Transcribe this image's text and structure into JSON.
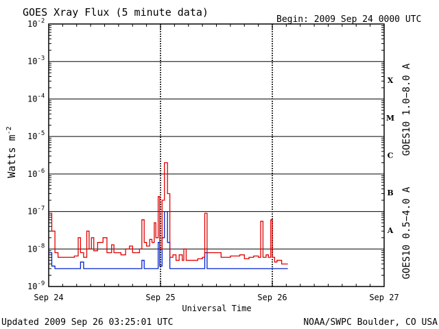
{
  "header": {
    "title": "GOES Xray Flux (5 minute data)",
    "begin": "Begin:  2009 Sep 24 0000 UTC"
  },
  "footer": {
    "updated": "Updated 2009 Sep 26 03:25:01 UTC",
    "source": "NOAA/SWPC Boulder, CO USA"
  },
  "colors": {
    "long": "#e00000",
    "short": "#0020d0",
    "grid": "#000000"
  },
  "chart_data": {
    "type": "line",
    "title": "GOES Xray Flux (5 minute data)",
    "xlabel": "Universal Time",
    "ylabel": "Watts m",
    "ylabel_sup": "-2",
    "yscale": "log",
    "ylim": [
      1e-09,
      0.01
    ],
    "xlim": [
      "2009-09-24T00:00Z",
      "2009-09-27T00:00Z"
    ],
    "x_ticks": [
      "Sep 24",
      "Sep 25",
      "Sep 26",
      "Sep 27"
    ],
    "y_ticks": [
      {
        "base": "10",
        "exp": "-9",
        "value": 1e-09
      },
      {
        "base": "10",
        "exp": "-8",
        "value": 1e-08
      },
      {
        "base": "10",
        "exp": "-7",
        "value": 1e-07
      },
      {
        "base": "10",
        "exp": "-6",
        "value": 1e-06
      },
      {
        "base": "10",
        "exp": "-5",
        "value": 1e-05
      },
      {
        "base": "10",
        "exp": "-4",
        "value": 0.0001
      },
      {
        "base": "10",
        "exp": "-3",
        "value": 0.001
      },
      {
        "base": "10",
        "exp": "-2",
        "value": 0.01
      }
    ],
    "flare_classes": [
      {
        "label": "A",
        "value": 3.16e-08
      },
      {
        "label": "B",
        "value": 3.16e-07
      },
      {
        "label": "C",
        "value": 3.16e-06
      },
      {
        "label": "M",
        "value": 3.16e-05
      },
      {
        "label": "X",
        "value": 0.000316
      }
    ],
    "grid": true,
    "series": [
      {
        "name": "GOES10 1.0−8.0 A",
        "color": "#e00000",
        "points": [
          [
            "2009-09-24T00:00Z",
            9e-08
          ],
          [
            "2009-09-24T00:40Z",
            3e-08
          ],
          [
            "2009-09-24T01:20Z",
            8e-09
          ],
          [
            "2009-09-24T02:00Z",
            6e-09
          ],
          [
            "2009-09-24T03:30Z",
            6e-09
          ],
          [
            "2009-09-24T04:10Z",
            6e-09
          ],
          [
            "2009-09-24T05:30Z",
            6.5e-09
          ],
          [
            "2009-09-24T06:20Z",
            2e-08
          ],
          [
            "2009-09-24T06:50Z",
            8e-09
          ],
          [
            "2009-09-24T07:30Z",
            6e-09
          ],
          [
            "2009-09-24T08:10Z",
            3e-08
          ],
          [
            "2009-09-24T08:40Z",
            1e-08
          ],
          [
            "2009-09-24T09:10Z",
            2e-08
          ],
          [
            "2009-09-24T09:40Z",
            9e-09
          ],
          [
            "2009-09-24T10:30Z",
            1.5e-08
          ],
          [
            "2009-09-24T11:40Z",
            2e-08
          ],
          [
            "2009-09-24T12:30Z",
            8e-09
          ],
          [
            "2009-09-24T13:30Z",
            1.3e-08
          ],
          [
            "2009-09-24T14:00Z",
            8e-09
          ],
          [
            "2009-09-24T15:30Z",
            7e-09
          ],
          [
            "2009-09-24T16:30Z",
            1e-08
          ],
          [
            "2009-09-24T17:20Z",
            1.2e-08
          ],
          [
            "2009-09-24T18:00Z",
            8e-09
          ],
          [
            "2009-09-24T19:30Z",
            1e-08
          ],
          [
            "2009-09-24T20:00Z",
            6e-08
          ],
          [
            "2009-09-24T20:30Z",
            1.5e-08
          ],
          [
            "2009-09-24T21:00Z",
            1.2e-08
          ],
          [
            "2009-09-24T21:40Z",
            1.8e-08
          ],
          [
            "2009-09-24T22:10Z",
            1.5e-08
          ],
          [
            "2009-09-24T22:40Z",
            5e-08
          ],
          [
            "2009-09-24T23:00Z",
            2e-08
          ],
          [
            "2009-09-24T23:30Z",
            2.5e-07
          ],
          [
            "2009-09-24T23:50Z",
            1e-08
          ],
          [
            "2009-09-25T00:20Z",
            2e-07
          ],
          [
            "2009-09-25T00:50Z",
            2e-06
          ],
          [
            "2009-09-25T01:30Z",
            3e-07
          ],
          [
            "2009-09-25T02:00Z",
            6e-09
          ],
          [
            "2009-09-25T02:40Z",
            7e-09
          ],
          [
            "2009-09-25T03:20Z",
            5e-09
          ],
          [
            "2009-09-25T04:00Z",
            7e-09
          ],
          [
            "2009-09-25T04:40Z",
            5e-09
          ],
          [
            "2009-09-25T05:00Z",
            1e-08
          ],
          [
            "2009-09-25T05:30Z",
            5e-09
          ],
          [
            "2009-09-25T08:00Z",
            5.5e-09
          ],
          [
            "2009-09-25T09:00Z",
            6e-09
          ],
          [
            "2009-09-25T09:30Z",
            9e-08
          ],
          [
            "2009-09-25T10:00Z",
            8e-09
          ],
          [
            "2009-09-25T13:00Z",
            6e-09
          ],
          [
            "2009-09-25T14:00Z",
            6e-09
          ],
          [
            "2009-09-25T15:00Z",
            6.5e-09
          ],
          [
            "2009-09-25T17:00Z",
            7e-09
          ],
          [
            "2009-09-25T18:00Z",
            5.5e-09
          ],
          [
            "2009-09-25T19:00Z",
            6e-09
          ],
          [
            "2009-09-25T20:00Z",
            6.5e-09
          ],
          [
            "2009-09-25T21:00Z",
            6e-09
          ],
          [
            "2009-09-25T21:30Z",
            5.5e-08
          ],
          [
            "2009-09-25T22:00Z",
            6e-09
          ],
          [
            "2009-09-25T22:40Z",
            7e-09
          ],
          [
            "2009-09-25T23:10Z",
            6e-09
          ],
          [
            "2009-09-25T23:40Z",
            6e-08
          ],
          [
            "2009-09-26T00:00Z",
            6e-09
          ],
          [
            "2009-09-26T00:30Z",
            4.5e-09
          ],
          [
            "2009-09-26T01:00Z",
            5e-09
          ],
          [
            "2009-09-26T02:00Z",
            4e-09
          ],
          [
            "2009-09-26T03:20Z",
            4e-09
          ]
        ]
      },
      {
        "name": "GOES10 0.5−4.0 A",
        "color": "#0020d0",
        "points": [
          [
            "2009-09-24T00:00Z",
            8e-09
          ],
          [
            "2009-09-24T00:40Z",
            3.5e-09
          ],
          [
            "2009-09-24T01:20Z",
            3e-09
          ],
          [
            "2009-09-24T06:20Z",
            3e-09
          ],
          [
            "2009-09-24T06:50Z",
            4.5e-09
          ],
          [
            "2009-09-24T07:30Z",
            3e-09
          ],
          [
            "2009-09-24T19:30Z",
            3e-09
          ],
          [
            "2009-09-24T20:00Z",
            5e-09
          ],
          [
            "2009-09-24T20:30Z",
            3e-09
          ],
          [
            "2009-09-24T23:00Z",
            3e-09
          ],
          [
            "2009-09-24T23:30Z",
            1.5e-08
          ],
          [
            "2009-09-24T23:50Z",
            3.5e-09
          ],
          [
            "2009-09-25T00:20Z",
            2e-08
          ],
          [
            "2009-09-25T00:50Z",
            1e-07
          ],
          [
            "2009-09-25T01:30Z",
            1.5e-08
          ],
          [
            "2009-09-25T02:00Z",
            3e-09
          ],
          [
            "2009-09-25T09:00Z",
            3e-09
          ],
          [
            "2009-09-25T09:30Z",
            8e-09
          ],
          [
            "2009-09-25T10:00Z",
            3e-09
          ],
          [
            "2009-09-25T23:40Z",
            3e-09
          ],
          [
            "2009-09-26T00:00Z",
            3e-09
          ],
          [
            "2009-09-26T03:20Z",
            3e-09
          ]
        ]
      }
    ]
  }
}
